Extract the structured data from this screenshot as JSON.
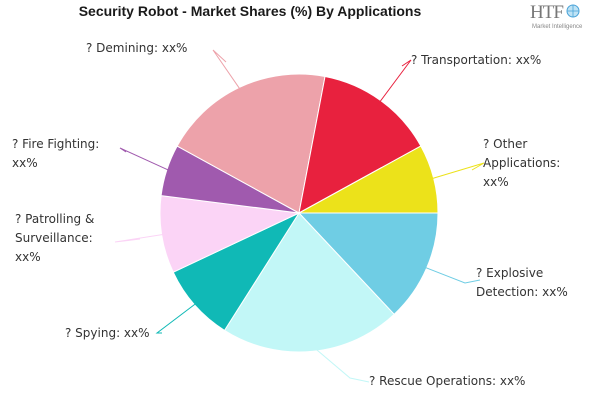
{
  "title": "Security Robot - Market Shares (%) By Applications",
  "logo": {
    "text": "HTF",
    "subtext": "Market Intelligence"
  },
  "chart_data": {
    "type": "pie",
    "title": "Security Robot - Market Shares (%) By Applications",
    "start_angle_deg": 0,
    "direction": "clockwise",
    "slices": [
      {
        "name": "Explosive Detection",
        "value": 13,
        "color": "#6fcde4",
        "label_lines": [
          "? Explosive",
          "Detection: xx%"
        ]
      },
      {
        "name": "Rescue Operations",
        "value": 21,
        "color": "#c2f7f7",
        "label_lines": [
          "? Rescue Operations: xx%"
        ]
      },
      {
        "name": "Spying",
        "value": 9,
        "color": "#10b9b6",
        "label_lines": [
          "? Spying: xx%"
        ]
      },
      {
        "name": "Patrolling & Surveillance",
        "value": 9,
        "color": "#fbd4f6",
        "label_lines": [
          "? Patrolling &",
          "Surveillance:",
          "xx%"
        ]
      },
      {
        "name": "Fire Fighting",
        "value": 6,
        "color": "#a05aae",
        "label_lines": [
          "? Fire Fighting:",
          "xx%"
        ]
      },
      {
        "name": "Demining",
        "value": 20,
        "color": "#eda2aa",
        "label_lines": [
          "? Demining: xx%"
        ]
      },
      {
        "name": "Transportation",
        "value": 14,
        "color": "#e8213e",
        "label_lines": [
          "? Transportation: xx%"
        ]
      },
      {
        "name": "Other Applications",
        "value": 8,
        "color": "#ece21a",
        "label_lines": [
          "? Other",
          "Applications:",
          "xx%"
        ]
      }
    ]
  }
}
